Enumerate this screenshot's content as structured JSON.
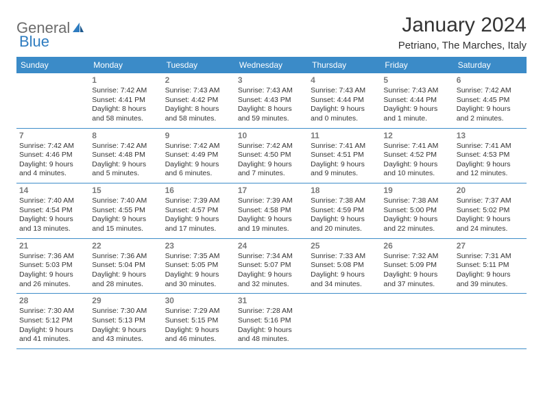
{
  "logo": {
    "general": "General",
    "blue": "Blue"
  },
  "title": "January 2024",
  "location": "Petriano, The Marches, Italy",
  "colors": {
    "header_bg": "#3b8bc8",
    "header_text": "#ffffff",
    "divider": "#3b8bc8",
    "day_number": "#7a7a7a",
    "body_text": "#333333",
    "logo_gray": "#6b6b6b",
    "logo_blue": "#2e7cc0"
  },
  "dayNames": [
    "Sunday",
    "Monday",
    "Tuesday",
    "Wednesday",
    "Thursday",
    "Friday",
    "Saturday"
  ],
  "weeks": [
    [
      null,
      {
        "n": "1",
        "sr": "Sunrise: 7:42 AM",
        "ss": "Sunset: 4:41 PM",
        "d1": "Daylight: 8 hours",
        "d2": "and 58 minutes."
      },
      {
        "n": "2",
        "sr": "Sunrise: 7:43 AM",
        "ss": "Sunset: 4:42 PM",
        "d1": "Daylight: 8 hours",
        "d2": "and 58 minutes."
      },
      {
        "n": "3",
        "sr": "Sunrise: 7:43 AM",
        "ss": "Sunset: 4:43 PM",
        "d1": "Daylight: 8 hours",
        "d2": "and 59 minutes."
      },
      {
        "n": "4",
        "sr": "Sunrise: 7:43 AM",
        "ss": "Sunset: 4:44 PM",
        "d1": "Daylight: 9 hours",
        "d2": "and 0 minutes."
      },
      {
        "n": "5",
        "sr": "Sunrise: 7:43 AM",
        "ss": "Sunset: 4:44 PM",
        "d1": "Daylight: 9 hours",
        "d2": "and 1 minute."
      },
      {
        "n": "6",
        "sr": "Sunrise: 7:42 AM",
        "ss": "Sunset: 4:45 PM",
        "d1": "Daylight: 9 hours",
        "d2": "and 2 minutes."
      }
    ],
    [
      {
        "n": "7",
        "sr": "Sunrise: 7:42 AM",
        "ss": "Sunset: 4:46 PM",
        "d1": "Daylight: 9 hours",
        "d2": "and 4 minutes."
      },
      {
        "n": "8",
        "sr": "Sunrise: 7:42 AM",
        "ss": "Sunset: 4:48 PM",
        "d1": "Daylight: 9 hours",
        "d2": "and 5 minutes."
      },
      {
        "n": "9",
        "sr": "Sunrise: 7:42 AM",
        "ss": "Sunset: 4:49 PM",
        "d1": "Daylight: 9 hours",
        "d2": "and 6 minutes."
      },
      {
        "n": "10",
        "sr": "Sunrise: 7:42 AM",
        "ss": "Sunset: 4:50 PM",
        "d1": "Daylight: 9 hours",
        "d2": "and 7 minutes."
      },
      {
        "n": "11",
        "sr": "Sunrise: 7:41 AM",
        "ss": "Sunset: 4:51 PM",
        "d1": "Daylight: 9 hours",
        "d2": "and 9 minutes."
      },
      {
        "n": "12",
        "sr": "Sunrise: 7:41 AM",
        "ss": "Sunset: 4:52 PM",
        "d1": "Daylight: 9 hours",
        "d2": "and 10 minutes."
      },
      {
        "n": "13",
        "sr": "Sunrise: 7:41 AM",
        "ss": "Sunset: 4:53 PM",
        "d1": "Daylight: 9 hours",
        "d2": "and 12 minutes."
      }
    ],
    [
      {
        "n": "14",
        "sr": "Sunrise: 7:40 AM",
        "ss": "Sunset: 4:54 PM",
        "d1": "Daylight: 9 hours",
        "d2": "and 13 minutes."
      },
      {
        "n": "15",
        "sr": "Sunrise: 7:40 AM",
        "ss": "Sunset: 4:55 PM",
        "d1": "Daylight: 9 hours",
        "d2": "and 15 minutes."
      },
      {
        "n": "16",
        "sr": "Sunrise: 7:39 AM",
        "ss": "Sunset: 4:57 PM",
        "d1": "Daylight: 9 hours",
        "d2": "and 17 minutes."
      },
      {
        "n": "17",
        "sr": "Sunrise: 7:39 AM",
        "ss": "Sunset: 4:58 PM",
        "d1": "Daylight: 9 hours",
        "d2": "and 19 minutes."
      },
      {
        "n": "18",
        "sr": "Sunrise: 7:38 AM",
        "ss": "Sunset: 4:59 PM",
        "d1": "Daylight: 9 hours",
        "d2": "and 20 minutes."
      },
      {
        "n": "19",
        "sr": "Sunrise: 7:38 AM",
        "ss": "Sunset: 5:00 PM",
        "d1": "Daylight: 9 hours",
        "d2": "and 22 minutes."
      },
      {
        "n": "20",
        "sr": "Sunrise: 7:37 AM",
        "ss": "Sunset: 5:02 PM",
        "d1": "Daylight: 9 hours",
        "d2": "and 24 minutes."
      }
    ],
    [
      {
        "n": "21",
        "sr": "Sunrise: 7:36 AM",
        "ss": "Sunset: 5:03 PM",
        "d1": "Daylight: 9 hours",
        "d2": "and 26 minutes."
      },
      {
        "n": "22",
        "sr": "Sunrise: 7:36 AM",
        "ss": "Sunset: 5:04 PM",
        "d1": "Daylight: 9 hours",
        "d2": "and 28 minutes."
      },
      {
        "n": "23",
        "sr": "Sunrise: 7:35 AM",
        "ss": "Sunset: 5:05 PM",
        "d1": "Daylight: 9 hours",
        "d2": "and 30 minutes."
      },
      {
        "n": "24",
        "sr": "Sunrise: 7:34 AM",
        "ss": "Sunset: 5:07 PM",
        "d1": "Daylight: 9 hours",
        "d2": "and 32 minutes."
      },
      {
        "n": "25",
        "sr": "Sunrise: 7:33 AM",
        "ss": "Sunset: 5:08 PM",
        "d1": "Daylight: 9 hours",
        "d2": "and 34 minutes."
      },
      {
        "n": "26",
        "sr": "Sunrise: 7:32 AM",
        "ss": "Sunset: 5:09 PM",
        "d1": "Daylight: 9 hours",
        "d2": "and 37 minutes."
      },
      {
        "n": "27",
        "sr": "Sunrise: 7:31 AM",
        "ss": "Sunset: 5:11 PM",
        "d1": "Daylight: 9 hours",
        "d2": "and 39 minutes."
      }
    ],
    [
      {
        "n": "28",
        "sr": "Sunrise: 7:30 AM",
        "ss": "Sunset: 5:12 PM",
        "d1": "Daylight: 9 hours",
        "d2": "and 41 minutes."
      },
      {
        "n": "29",
        "sr": "Sunrise: 7:30 AM",
        "ss": "Sunset: 5:13 PM",
        "d1": "Daylight: 9 hours",
        "d2": "and 43 minutes."
      },
      {
        "n": "30",
        "sr": "Sunrise: 7:29 AM",
        "ss": "Sunset: 5:15 PM",
        "d1": "Daylight: 9 hours",
        "d2": "and 46 minutes."
      },
      {
        "n": "31",
        "sr": "Sunrise: 7:28 AM",
        "ss": "Sunset: 5:16 PM",
        "d1": "Daylight: 9 hours",
        "d2": "and 48 minutes."
      },
      null,
      null,
      null
    ]
  ]
}
